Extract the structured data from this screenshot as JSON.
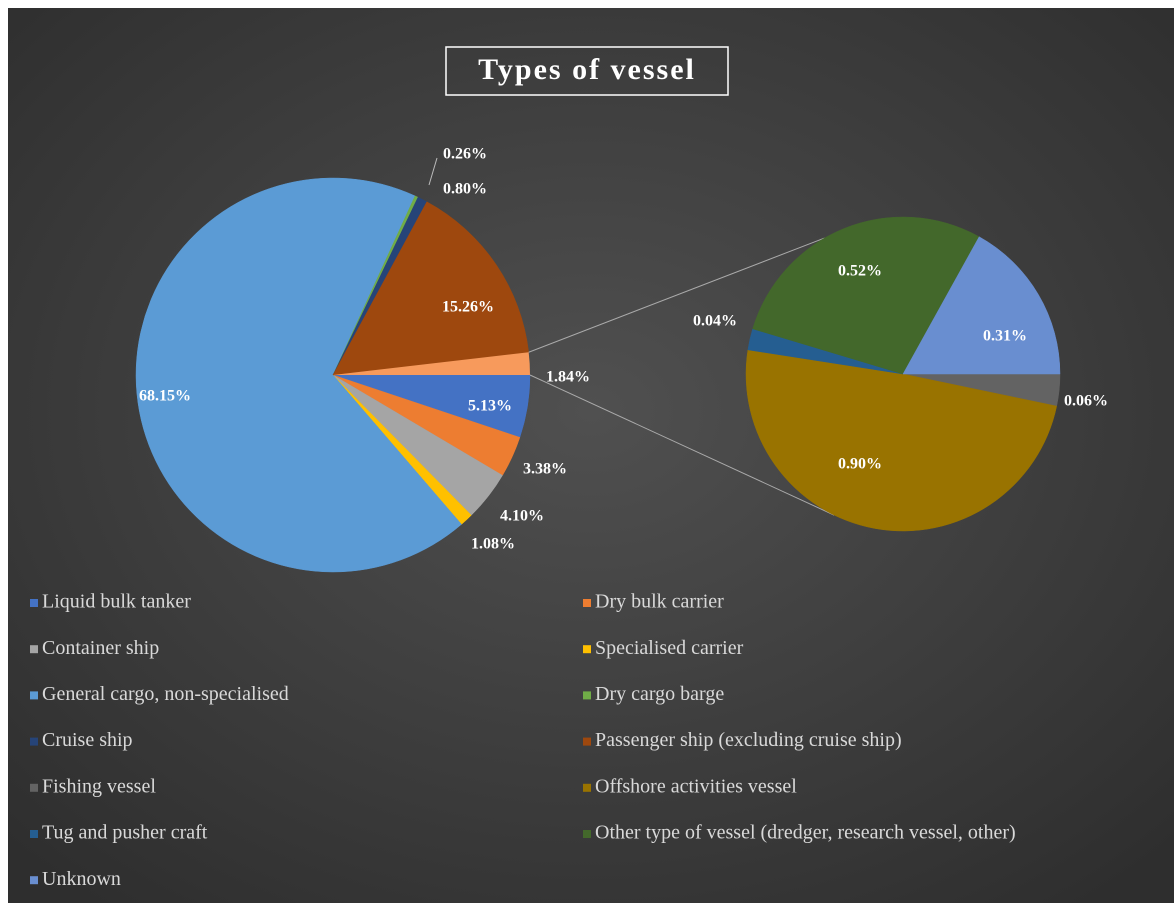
{
  "chart_data": {
    "type": "pie_of_pie",
    "title": "Types of vessel",
    "categories": [
      "Liquid bulk tanker",
      "Dry bulk carrier",
      "Container ship",
      "Specialised carrier",
      "General cargo, non-specialised",
      "Dry cargo barge",
      "Cruise ship",
      "Passenger ship (excluding cruise ship)",
      "Fishing vessel",
      "Offshore activities vessel",
      "Tug and pusher craft",
      "Other type of vessel (dredger, research vessel, other)",
      "Unknown"
    ],
    "values": [
      5.13,
      3.38,
      4.1,
      1.08,
      68.15,
      0.26,
      0.8,
      15.26,
      0.06,
      0.9,
      0.04,
      0.52,
      0.31
    ],
    "value_labels": [
      "5.13%",
      "3.38%",
      "4.10%",
      "1.08%",
      "68.15%",
      "0.26%",
      "0.80%",
      "15.26%",
      "0.06%",
      "0.90%",
      "0.04%",
      "0.52%",
      "0.31%"
    ],
    "colors": [
      "#4472c4",
      "#ed7d31",
      "#a5a5a5",
      "#ffc000",
      "#5b9bd5",
      "#70ad47",
      "#264478",
      "#9e480e",
      "#636363",
      "#997300",
      "#255e91",
      "#43682b",
      "#698ed0"
    ],
    "other_value": 1.84,
    "other_value_label": "1.84%",
    "other_color": "#f79a5c",
    "split_last": 5,
    "start_angle": 90
  }
}
